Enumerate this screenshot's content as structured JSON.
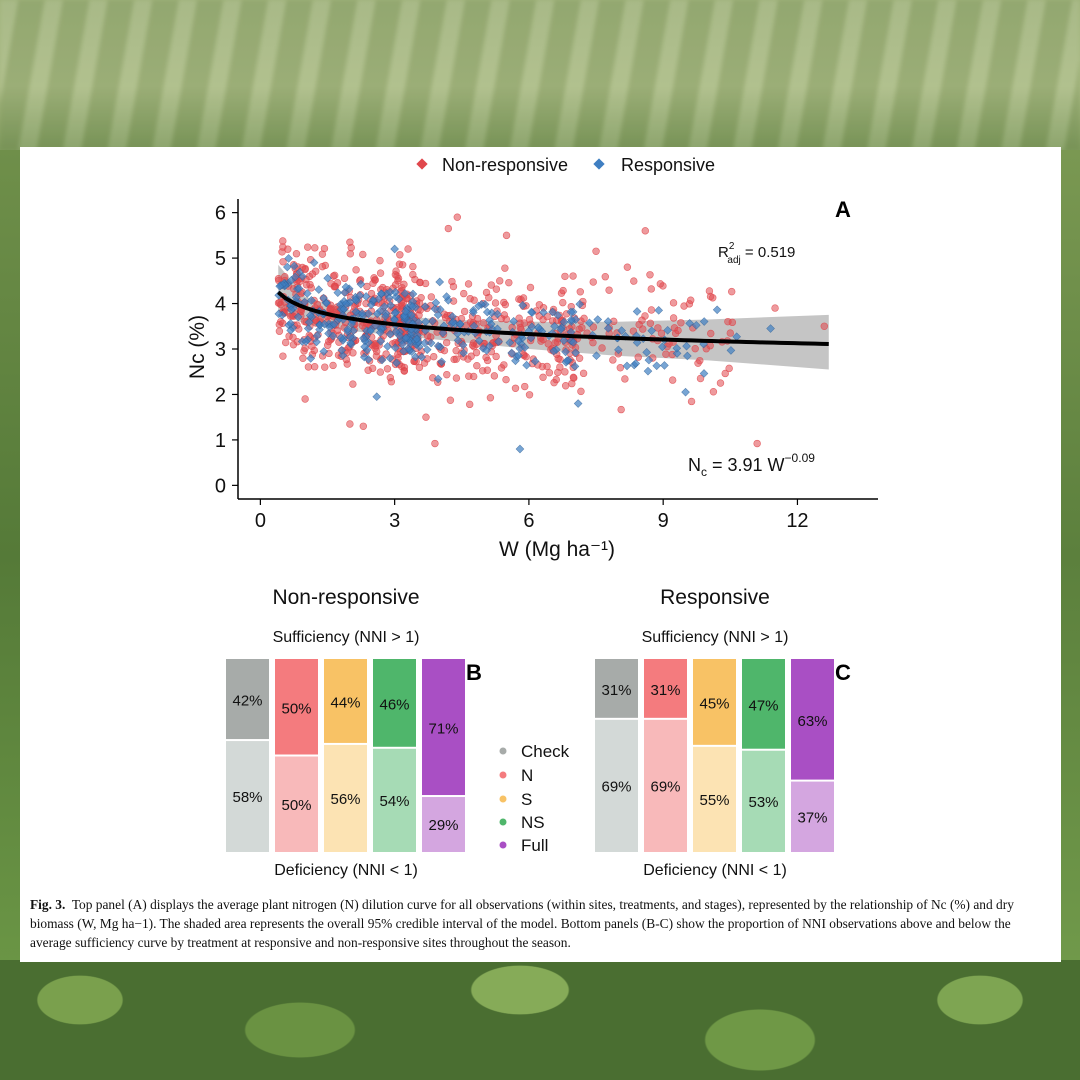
{
  "caption": {
    "label": "Fig. 3.",
    "text": "Top panel (A) displays the average plant nitrogen (N) dilution curve for all observations (within sites, treatments, and stages), represented by the relationship of Nc (%) and dry biomass (W, Mg ha−1). The shaded area represents the overall 95% credible interval of the model. Bottom panels (B-C) show the proportion of NNI observations above and below the average sufficiency curve by treatment at responsive and non-responsive sites throughout the season."
  },
  "chart_data": [
    {
      "type": "scatter",
      "panel_label": "A",
      "legend": [
        {
          "name": "Non-responsive",
          "color": "#e0474c",
          "marker": "circle"
        },
        {
          "name": "Responsive",
          "color": "#3f7fc2",
          "marker": "diamond"
        }
      ],
      "legend_position": "top",
      "xlabel": "W (Mg ha⁻¹)",
      "ylabel": "Nc (%)",
      "xlim": [
        -0.5,
        13.8
      ],
      "ylim": [
        -0.3,
        6.3
      ],
      "xticks": [
        0,
        3,
        6,
        9,
        12
      ],
      "yticks": [
        0,
        1,
        2,
        3,
        4,
        5,
        6
      ],
      "grid": false,
      "fit": {
        "equation_base": "N",
        "equation_sub": "c",
        "equation_rest": " = 3.91 W",
        "equation_exp": "−0.09",
        "a": 3.91,
        "b": -0.09,
        "x_range": [
          0.4,
          12.7
        ]
      },
      "credible_interval": {
        "x": [
          0.4,
          1,
          2,
          4,
          6,
          8,
          10,
          12.7
        ],
        "lower": [
          3.8,
          3.55,
          3.4,
          3.2,
          3.0,
          2.85,
          2.75,
          2.55
        ],
        "upper": [
          4.85,
          4.15,
          3.85,
          3.65,
          3.6,
          3.6,
          3.65,
          3.75
        ]
      },
      "r2_label": {
        "base": "R",
        "sup": "2",
        "sub": "adj",
        "rest": " = 0.519"
      },
      "outliers": {
        "Non-responsive": [
          [
            4.4,
            5.9
          ],
          [
            4.2,
            5.65
          ],
          [
            8.6,
            5.6
          ],
          [
            3.9,
            0.92
          ],
          [
            11.1,
            0.92
          ],
          [
            2.0,
            5.35
          ],
          [
            1.0,
            4.75
          ],
          [
            5.5,
            5.5
          ],
          [
            3.3,
            5.2
          ],
          [
            7.5,
            5.15
          ],
          [
            8.2,
            4.8
          ],
          [
            2.0,
            1.35
          ],
          [
            2.3,
            1.3
          ],
          [
            12.6,
            3.5
          ],
          [
            11.5,
            3.9
          ],
          [
            1.0,
            1.9
          ],
          [
            3.7,
            1.5
          ],
          [
            10.5,
            3.35
          ]
        ],
        "Responsive": [
          [
            5.8,
            0.8
          ],
          [
            11.4,
            3.45
          ],
          [
            9.5,
            2.05
          ],
          [
            7.1,
            1.8
          ],
          [
            3.0,
            5.2
          ],
          [
            1.2,
            4.9
          ],
          [
            8.9,
            3.85
          ],
          [
            2.6,
            1.95
          ]
        ]
      },
      "sample_counts": {
        "Non-responsive": 700,
        "Responsive": 360
      }
    },
    {
      "type": "bar",
      "panel_label": "B",
      "title": "Non-responsive",
      "top_label": "Sufficiency (NNI > 1)",
      "bottom_label": "Deficiency (NNI < 1)",
      "stacked": true,
      "categories": [
        "Check",
        "N",
        "S",
        "NS",
        "Full"
      ],
      "series": [
        {
          "values": [
            42,
            50,
            44,
            46,
            71
          ]
        },
        {
          "values": [
            58,
            50,
            56,
            54,
            29
          ]
        }
      ]
    },
    {
      "type": "bar",
      "panel_label": "C",
      "title": "Responsive",
      "top_label": "Sufficiency (NNI > 1)",
      "bottom_label": "Deficiency (NNI < 1)",
      "stacked": true,
      "categories": [
        "Check",
        "N",
        "S",
        "NS",
        "Full"
      ],
      "series": [
        {
          "values": [
            31,
            31,
            45,
            47,
            63
          ]
        },
        {
          "values": [
            69,
            69,
            55,
            53,
            37
          ]
        }
      ]
    }
  ],
  "treatment_legend": [
    {
      "name": "Check",
      "color": "#a7aba9",
      "light": "#d3d9d7"
    },
    {
      "name": "N",
      "color": "#f47b7e",
      "light": "#f8b9ba"
    },
    {
      "name": "S",
      "color": "#f8c265",
      "light": "#fce3b3"
    },
    {
      "name": "NS",
      "color": "#4fb66b",
      "light": "#a6dbb5"
    },
    {
      "name": "Full",
      "color": "#a94fc4",
      "light": "#d4a6e0"
    }
  ]
}
